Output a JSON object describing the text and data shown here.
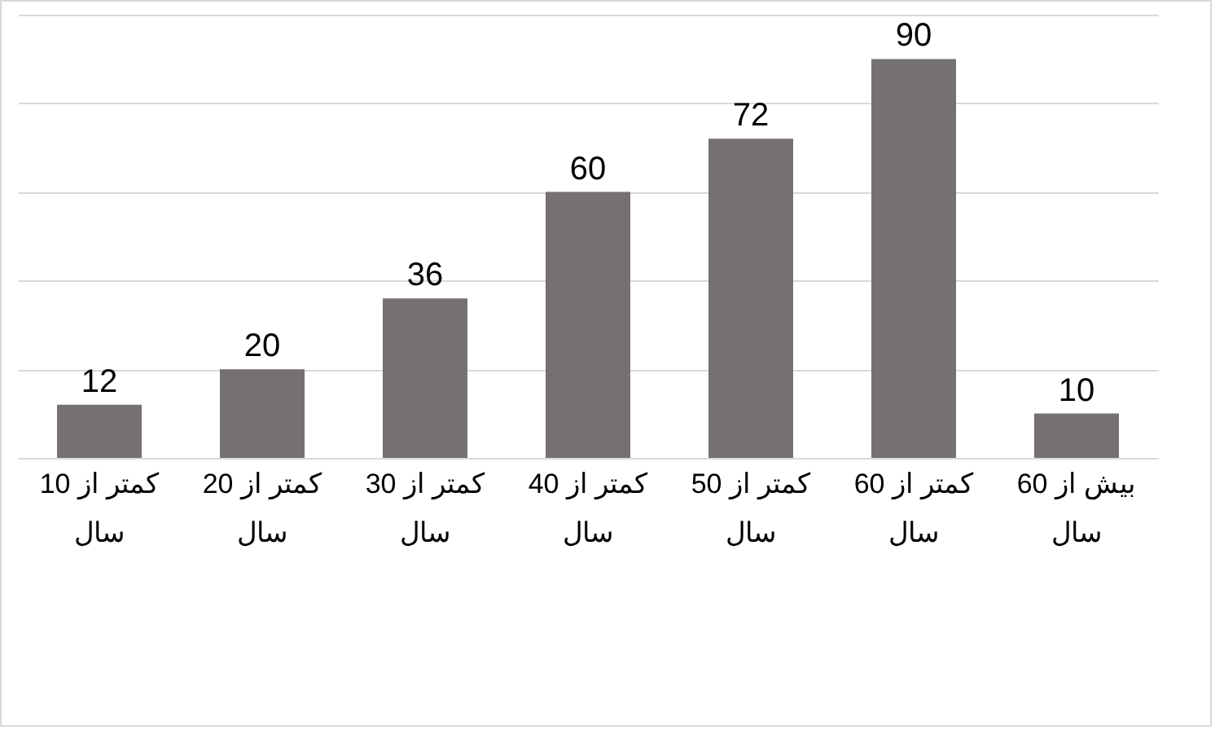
{
  "chart_data": {
    "type": "bar",
    "categories": [
      "کمتر از 10 سال",
      "کمتر از 20 سال",
      "کمتر از 30 سال",
      "کمتر از 40 سال",
      "کمتر از 50 سال",
      "کمتر از 60 سال",
      "بیش از 60 سال"
    ],
    "values": [
      12,
      20,
      36,
      60,
      72,
      90,
      10
    ],
    "color": "#767171",
    "ylim": [
      0,
      100
    ],
    "yticks": [
      {
        "value": 0,
        "label": null
      },
      {
        "value": 20,
        "label": null
      },
      {
        "value": 40,
        "label": null
      },
      {
        "value": 60,
        "label": null
      },
      {
        "value": 80,
        "label": null
      },
      {
        "value": 100,
        "label": null
      }
    ],
    "grid": "y",
    "tick_labels": "x",
    "data_labels": true
  }
}
